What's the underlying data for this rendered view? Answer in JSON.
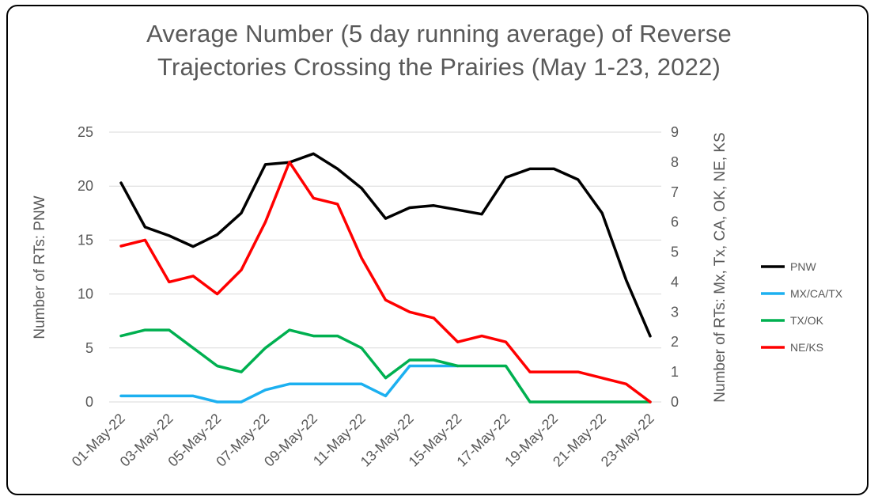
{
  "chart_data": {
    "type": "line",
    "title_line1": "Average Number (5 day running average) of Reverse",
    "title_line2": "Trajectories Crossing the Prairies (May 1-23, 2022)",
    "ylabel_left": "Number of RTs: PNW",
    "ylabel_right": "Number of RTs: Mx, Tx, CA, OK, NE, KS",
    "ylim_left": [
      0,
      25
    ],
    "ylim_right": [
      0,
      9
    ],
    "yticks_left": [
      0,
      5,
      10,
      15,
      20,
      25
    ],
    "yticks_right": [
      0,
      1,
      2,
      3,
      4,
      5,
      6,
      7,
      8,
      9
    ],
    "grid": "horizontal",
    "legend_position": "right",
    "x": [
      "01-May-22",
      "02-May-22",
      "03-May-22",
      "04-May-22",
      "05-May-22",
      "06-May-22",
      "07-May-22",
      "08-May-22",
      "09-May-22",
      "10-May-22",
      "11-May-22",
      "12-May-22",
      "13-May-22",
      "14-May-22",
      "15-May-22",
      "16-May-22",
      "17-May-22",
      "18-May-22",
      "19-May-22",
      "20-May-22",
      "21-May-22",
      "22-May-22",
      "23-May-22"
    ],
    "x_tick_labels": [
      "01-May-22",
      "03-May-22",
      "05-May-22",
      "07-May-22",
      "09-May-22",
      "11-May-22",
      "13-May-22",
      "15-May-22",
      "17-May-22",
      "19-May-22",
      "21-May-22",
      "23-May-22"
    ],
    "series": [
      {
        "name": "PNW",
        "axis": "left",
        "color": "#000000",
        "values": [
          20.3,
          16.2,
          15.4,
          14.4,
          15.5,
          17.5,
          22.0,
          22.2,
          23.0,
          21.6,
          19.8,
          17.0,
          18.0,
          18.2,
          17.8,
          17.4,
          20.8,
          21.6,
          21.6,
          20.6,
          17.5,
          11.3,
          6.1
        ]
      },
      {
        "name": "MX/CA/TX",
        "axis": "right",
        "color": "#1CB0F0",
        "values": [
          0.2,
          0.2,
          0.2,
          0.2,
          0.0,
          0.0,
          0.4,
          0.6,
          0.6,
          0.6,
          0.6,
          0.2,
          1.2,
          1.2,
          1.2,
          null,
          null,
          null,
          null,
          null,
          null,
          null,
          null
        ]
      },
      {
        "name": "TX/OK",
        "axis": "right",
        "color": "#00B050",
        "values": [
          2.2,
          2.4,
          2.4,
          1.8,
          1.2,
          1.0,
          1.8,
          2.4,
          2.2,
          2.2,
          1.8,
          0.8,
          1.4,
          1.4,
          1.2,
          1.2,
          1.2,
          0.0,
          0.0,
          0.0,
          0.0,
          0.0,
          0.0
        ]
      },
      {
        "name": "NE/KS",
        "axis": "right",
        "color": "#FF0000",
        "values": [
          5.2,
          5.4,
          4.0,
          4.2,
          3.6,
          4.4,
          6.0,
          8.0,
          6.8,
          6.6,
          4.8,
          3.4,
          3.0,
          2.8,
          2.0,
          2.2,
          2.0,
          1.0,
          1.0,
          1.0,
          0.8,
          0.6,
          0.0
        ]
      }
    ]
  }
}
